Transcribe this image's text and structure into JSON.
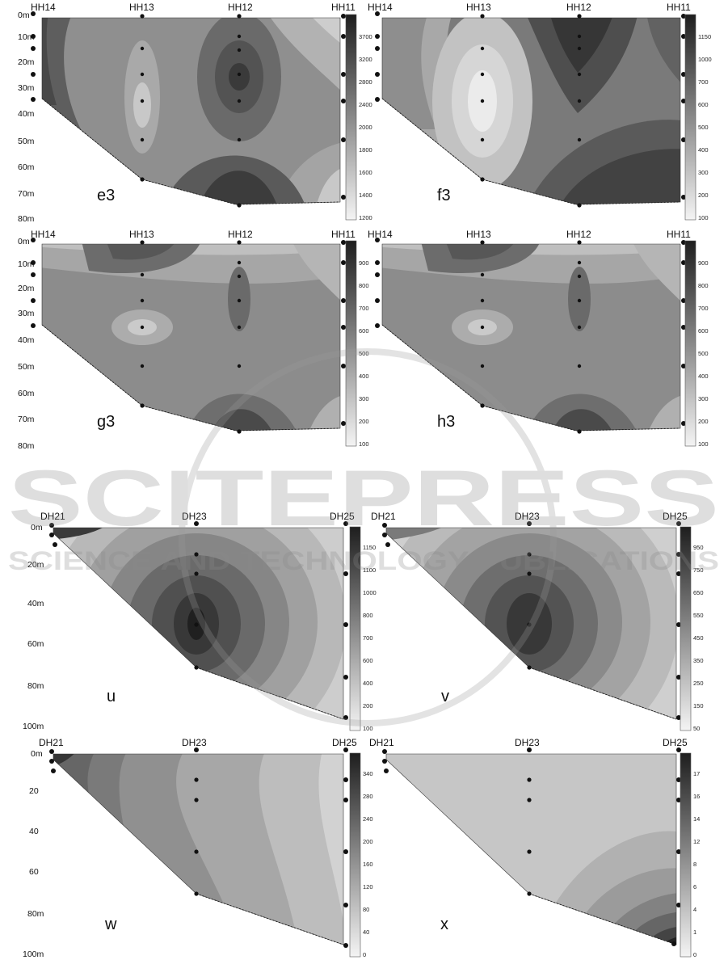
{
  "watermark": {
    "main": "SCITEPRESS",
    "sub": "SCIENCE AND TECHNOLOGY PUBLICATIONS"
  },
  "borehole_sets": {
    "HH": [
      "HH14",
      "HH13",
      "HH12",
      "HH11"
    ],
    "DH": [
      "DH21",
      "DH23",
      "DH25"
    ]
  },
  "depth_labels": {
    "HH": [
      "0m",
      "10m",
      "20m",
      "30m",
      "40m",
      "50m",
      "60m",
      "70m",
      "80m"
    ],
    "HH_g3": [
      "0m",
      "10m",
      "20m",
      "30m",
      "40m",
      "50m",
      "60m",
      "70m",
      "80m"
    ],
    "DH": [
      "0m",
      "20m",
      "40m",
      "60m",
      "80m",
      "100m"
    ],
    "DH_w": [
      "0m",
      "20",
      "40",
      "60",
      "80m",
      "100m"
    ]
  },
  "panels": [
    {
      "id": "e3",
      "label": "e3",
      "colorbar": [
        "3700",
        "3200",
        "2800",
        "2400",
        "2000",
        "1800",
        "1600",
        "1400",
        "1200"
      ]
    },
    {
      "id": "f3",
      "label": "f3",
      "colorbar": [
        "1150",
        "1000",
        "700",
        "600",
        "500",
        "400",
        "300",
        "200",
        "100"
      ]
    },
    {
      "id": "g3",
      "label": "g3",
      "colorbar": [
        "900",
        "800",
        "700",
        "600",
        "500",
        "400",
        "300",
        "200",
        "100"
      ]
    },
    {
      "id": "h3",
      "label": "h3",
      "colorbar": [
        "900",
        "800",
        "700",
        "600",
        "500",
        "400",
        "300",
        "200",
        "100"
      ]
    },
    {
      "id": "u",
      "label": "u",
      "colorbar": [
        "1150",
        "1100",
        "1000",
        "800",
        "700",
        "600",
        "400",
        "200",
        "100"
      ]
    },
    {
      "id": "v",
      "label": "v",
      "colorbar": [
        "950",
        "750",
        "650",
        "550",
        "450",
        "350",
        "250",
        "150",
        "50"
      ]
    },
    {
      "id": "w",
      "label": "w",
      "colorbar": [
        "340",
        "280",
        "240",
        "200",
        "160",
        "120",
        "80",
        "40",
        "0"
      ]
    },
    {
      "id": "x",
      "label": "x",
      "colorbar": [
        "17",
        "16",
        "14",
        "12",
        "8",
        "6",
        "4",
        "1",
        "0"
      ]
    }
  ]
}
